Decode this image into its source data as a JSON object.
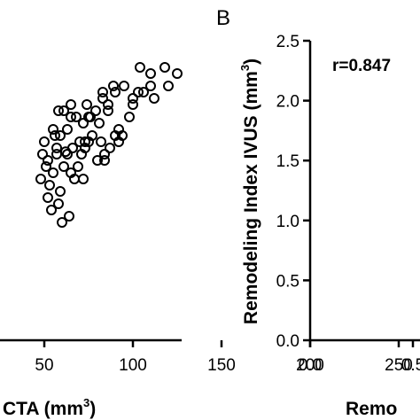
{
  "chart_data": [
    {
      "panel": "A",
      "type": "scatter",
      "xlabel_prefix": "CTA (mm",
      "xlabel_sup": "3",
      "xlabel_suffix": ")",
      "x_tick_labels": [
        "50",
        "100",
        "150",
        "200",
        "250"
      ],
      "xlim": [
        40,
        250
      ],
      "ylim": [
        0,
        240
      ],
      "marker": "open-circle",
      "grid": false,
      "points": [
        [
          48,
          130
        ],
        [
          49,
          150
        ],
        [
          50,
          160
        ],
        [
          51,
          140
        ],
        [
          52,
          115
        ],
        [
          53,
          125
        ],
        [
          52,
          145
        ],
        [
          54,
          105
        ],
        [
          55,
          170
        ],
        [
          55,
          135
        ],
        [
          56,
          165
        ],
        [
          57,
          150
        ],
        [
          57,
          155
        ],
        [
          58,
          110
        ],
        [
          58,
          185
        ],
        [
          59,
          120
        ],
        [
          59,
          165
        ],
        [
          60,
          95
        ],
        [
          61,
          185
        ],
        [
          61,
          140
        ],
        [
          62,
          152
        ],
        [
          63,
          150
        ],
        [
          63,
          170
        ],
        [
          64,
          100
        ],
        [
          65,
          190
        ],
        [
          65,
          180
        ],
        [
          65,
          135
        ],
        [
          66,
          155
        ],
        [
          67,
          130
        ],
        [
          68,
          180
        ],
        [
          69,
          140
        ],
        [
          70,
          160
        ],
        [
          71,
          150
        ],
        [
          72,
          130
        ],
        [
          72,
          175
        ],
        [
          73,
          155
        ],
        [
          73,
          160
        ],
        [
          74,
          190
        ],
        [
          75,
          160
        ],
        [
          75,
          180
        ],
        [
          76,
          180
        ],
        [
          77,
          165
        ],
        [
          79,
          185
        ],
        [
          80,
          145
        ],
        [
          81,
          175
        ],
        [
          82,
          160
        ],
        [
          83,
          200
        ],
        [
          83,
          195
        ],
        [
          84,
          150
        ],
        [
          84,
          145
        ],
        [
          86,
          185
        ],
        [
          86,
          190
        ],
        [
          87,
          155
        ],
        [
          89,
          205
        ],
        [
          90,
          200
        ],
        [
          90,
          165
        ],
        [
          92,
          160
        ],
        [
          92,
          170
        ],
        [
          94,
          165
        ],
        [
          95,
          205
        ],
        [
          98,
          180
        ],
        [
          100,
          190
        ],
        [
          100,
          195
        ],
        [
          103,
          200
        ],
        [
          104,
          220
        ],
        [
          106,
          200
        ],
        [
          110,
          205
        ],
        [
          110,
          215
        ],
        [
          112,
          195
        ],
        [
          118,
          220
        ],
        [
          120,
          205
        ],
        [
          125,
          215
        ]
      ]
    },
    {
      "panel": "B",
      "type": "scatter",
      "panel_label": "B",
      "correlation_label": "r=0.847",
      "ylabel_prefix": "Remodeling Index IVUS (mm",
      "ylabel_sup": "3",
      "ylabel_suffix": ")",
      "xlabel_visible": "Remo",
      "y_ticks": [
        0.0,
        0.5,
        1.0,
        1.5,
        2.0,
        2.5
      ],
      "y_tick_labels": [
        "0.0",
        "0.5",
        "1.0",
        "1.5",
        "2.0",
        "2.5"
      ],
      "x_tick_labels": [
        "0.0",
        "0.5"
      ],
      "ylim": [
        0,
        2.5
      ],
      "grid": false
    }
  ]
}
